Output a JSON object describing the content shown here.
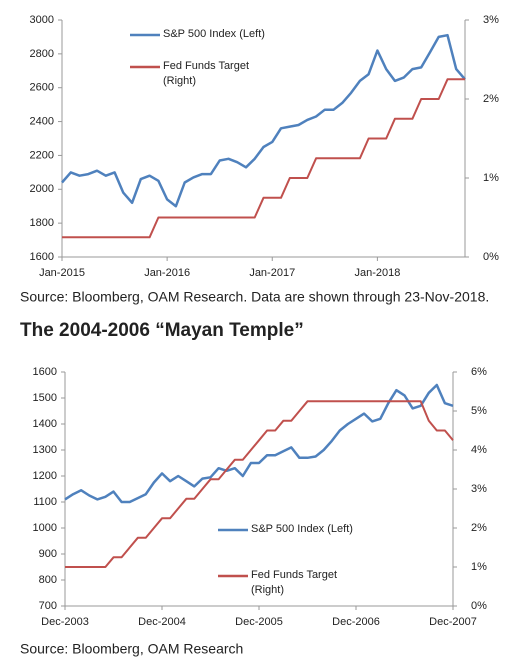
{
  "chart_data": [
    {
      "type": "line",
      "x": [
        "Jan-2015",
        "Feb-2015",
        "Mar-2015",
        "Apr-2015",
        "May-2015",
        "Jun-2015",
        "Jul-2015",
        "Aug-2015",
        "Sep-2015",
        "Oct-2015",
        "Nov-2015",
        "Dec-2015",
        "Jan-2016",
        "Feb-2016",
        "Mar-2016",
        "Apr-2016",
        "May-2016",
        "Jun-2016",
        "Jul-2016",
        "Aug-2016",
        "Sep-2016",
        "Oct-2016",
        "Nov-2016",
        "Dec-2016",
        "Jan-2017",
        "Feb-2017",
        "Mar-2017",
        "Apr-2017",
        "May-2017",
        "Jun-2017",
        "Jul-2017",
        "Aug-2017",
        "Sep-2017",
        "Oct-2017",
        "Nov-2017",
        "Dec-2017",
        "Jan-2018",
        "Feb-2018",
        "Mar-2018",
        "Apr-2018",
        "May-2018",
        "Jun-2018",
        "Jul-2018",
        "Aug-2018",
        "Sep-2018",
        "Oct-2018",
        "Nov-2018"
      ],
      "xticks": [
        "Jan-2015",
        "Jan-2016",
        "Jan-2017",
        "Jan-2018"
      ],
      "series": [
        {
          "name": "S&P 500 Index (Left)",
          "color": "#4f81bd",
          "axis": "y",
          "values": [
            2040,
            2100,
            2080,
            2090,
            2110,
            2080,
            2100,
            1980,
            1920,
            2060,
            2080,
            2050,
            1940,
            1900,
            2040,
            2070,
            2090,
            2090,
            2170,
            2180,
            2160,
            2130,
            2180,
            2250,
            2280,
            2360,
            2370,
            2380,
            2410,
            2430,
            2470,
            2470,
            2510,
            2570,
            2640,
            2680,
            2820,
            2710,
            2640,
            2660,
            2710,
            2720,
            2810,
            2900,
            2910,
            2710,
            2650
          ]
        },
        {
          "name": "Fed Funds Target\n(Right)",
          "color": "#c0504d",
          "axis": "y2",
          "values": [
            0.25,
            0.25,
            0.25,
            0.25,
            0.25,
            0.25,
            0.25,
            0.25,
            0.25,
            0.25,
            0.25,
            0.5,
            0.5,
            0.5,
            0.5,
            0.5,
            0.5,
            0.5,
            0.5,
            0.5,
            0.5,
            0.5,
            0.5,
            0.75,
            0.75,
            0.75,
            1.0,
            1.0,
            1.0,
            1.25,
            1.25,
            1.25,
            1.25,
            1.25,
            1.25,
            1.5,
            1.5,
            1.5,
            1.75,
            1.75,
            1.75,
            2.0,
            2.0,
            2.0,
            2.25,
            2.25,
            2.25
          ]
        }
      ],
      "ylim": [
        1600,
        3000
      ],
      "yticks": [
        1600,
        1800,
        2000,
        2200,
        2400,
        2600,
        2800,
        3000
      ],
      "y2lim": [
        0,
        3
      ],
      "y2ticks": [
        {
          "value": 0,
          "label": "0%"
        },
        {
          "value": 1,
          "label": "1%"
        },
        {
          "value": 2,
          "label": "2%"
        },
        {
          "value": 3,
          "label": "3%"
        }
      ],
      "note": "Source:  Bloomberg, OAM Research. Data are shown through 23-Nov-2018."
    },
    {
      "type": "line",
      "title": "The 2004-2006 “Mayan Temple”",
      "x": [
        "Dec-2003",
        "Jan-2004",
        "Feb-2004",
        "Mar-2004",
        "Apr-2004",
        "May-2004",
        "Jun-2004",
        "Jul-2004",
        "Aug-2004",
        "Sep-2004",
        "Oct-2004",
        "Nov-2004",
        "Dec-2004",
        "Jan-2005",
        "Feb-2005",
        "Mar-2005",
        "Apr-2005",
        "May-2005",
        "Jun-2005",
        "Jul-2005",
        "Aug-2005",
        "Sep-2005",
        "Oct-2005",
        "Nov-2005",
        "Dec-2005",
        "Jan-2006",
        "Feb-2006",
        "Mar-2006",
        "Apr-2006",
        "May-2006",
        "Jun-2006",
        "Jul-2006",
        "Aug-2006",
        "Sep-2006",
        "Oct-2006",
        "Nov-2006",
        "Dec-2006",
        "Jan-2007",
        "Feb-2007",
        "Mar-2007",
        "Apr-2007",
        "May-2007",
        "Jun-2007",
        "Jul-2007",
        "Aug-2007",
        "Sep-2007",
        "Oct-2007",
        "Nov-2007",
        "Dec-2007"
      ],
      "xticks": [
        "Dec-2003",
        "Dec-2004",
        "Dec-2005",
        "Dec-2006",
        "Dec-2007"
      ],
      "series": [
        {
          "name": "S&P 500 Index (Left)",
          "color": "#4f81bd",
          "axis": "y",
          "values": [
            1110,
            1130,
            1145,
            1125,
            1110,
            1120,
            1140,
            1100,
            1100,
            1115,
            1130,
            1175,
            1210,
            1180,
            1200,
            1180,
            1160,
            1190,
            1195,
            1230,
            1220,
            1230,
            1200,
            1250,
            1250,
            1280,
            1280,
            1295,
            1310,
            1270,
            1270,
            1275,
            1300,
            1335,
            1375,
            1400,
            1420,
            1440,
            1410,
            1420,
            1480,
            1530,
            1510,
            1460,
            1470,
            1520,
            1550,
            1480,
            1470
          ]
        },
        {
          "name": "Fed Funds Target\n(Right)",
          "color": "#c0504d",
          "axis": "y2",
          "values": [
            1.0,
            1.0,
            1.0,
            1.0,
            1.0,
            1.0,
            1.25,
            1.25,
            1.5,
            1.75,
            1.75,
            2.0,
            2.25,
            2.25,
            2.5,
            2.75,
            2.75,
            3.0,
            3.25,
            3.25,
            3.5,
            3.75,
            3.75,
            4.0,
            4.25,
            4.5,
            4.5,
            4.75,
            4.75,
            5.0,
            5.25,
            5.25,
            5.25,
            5.25,
            5.25,
            5.25,
            5.25,
            5.25,
            5.25,
            5.25,
            5.25,
            5.25,
            5.25,
            5.25,
            5.25,
            4.75,
            4.5,
            4.5,
            4.25
          ]
        }
      ],
      "ylim": [
        700,
        1600
      ],
      "yticks": [
        700,
        800,
        900,
        1000,
        1100,
        1200,
        1300,
        1400,
        1500,
        1600
      ],
      "y2lim": [
        0,
        6
      ],
      "y2ticks": [
        {
          "value": 0,
          "label": "0%"
        },
        {
          "value": 1,
          "label": "1%"
        },
        {
          "value": 2,
          "label": "2%"
        },
        {
          "value": 3,
          "label": "3%"
        },
        {
          "value": 4,
          "label": "4%"
        },
        {
          "value": 5,
          "label": "5%"
        },
        {
          "value": 6,
          "label": "6%"
        }
      ],
      "note": "Source:  Bloomberg, OAM Research"
    }
  ]
}
